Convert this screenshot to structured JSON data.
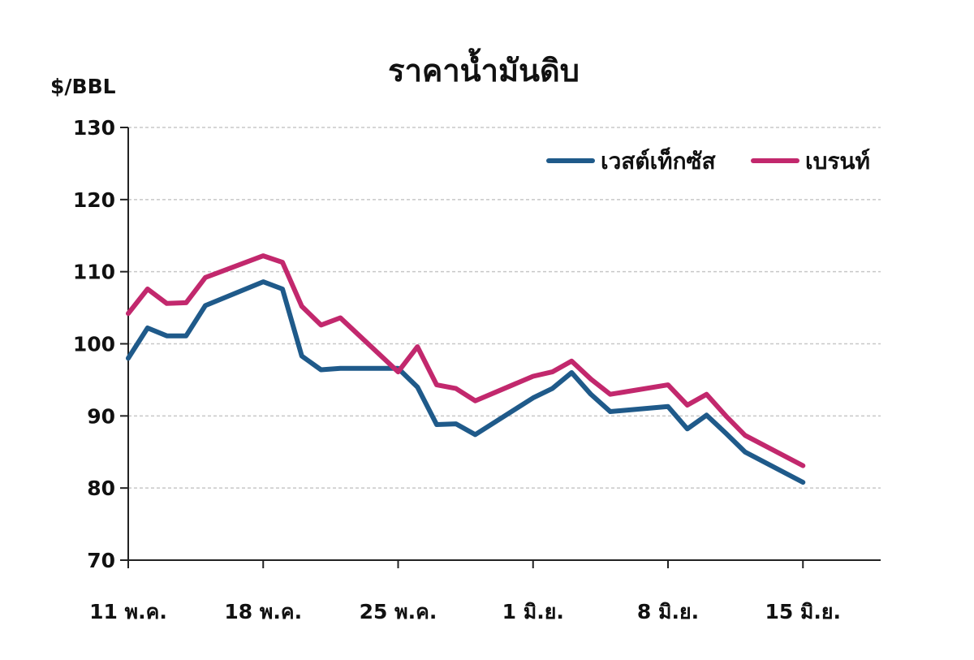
{
  "chart_data": {
    "type": "line",
    "title": "ราคาน้ำมันดิบ",
    "ylabel": "$/BBL",
    "ylim": [
      70,
      130
    ],
    "yticks": [
      70,
      80,
      90,
      100,
      110,
      120,
      130
    ],
    "grid": true,
    "legend_position": "top-right",
    "x_tick_labels": [
      "11 พ.ค.",
      "18 พ.ค.",
      "25 พ.ค.",
      "1 มิ.ย.",
      "8 มิ.ย.",
      "15 มิ.ย."
    ],
    "x_tick_days": [
      0,
      7,
      14,
      21,
      28,
      35
    ],
    "x_range_days": [
      0,
      39
    ],
    "series": [
      {
        "name": "เวสต์เท็กซัส",
        "color": "#1f5a8a",
        "x": [
          0,
          1,
          2,
          3,
          4,
          7,
          8,
          9,
          10,
          11,
          14,
          15,
          16,
          17,
          18,
          21,
          22,
          23,
          24,
          25,
          28,
          29,
          30,
          31,
          32,
          35
        ],
        "values": [
          98.0,
          102.2,
          101.1,
          101.1,
          105.3,
          108.6,
          107.6,
          98.3,
          96.4,
          96.6,
          96.6,
          94.0,
          88.8,
          88.9,
          87.4,
          92.5,
          93.8,
          96.0,
          93.0,
          90.6,
          91.3,
          88.2,
          90.1,
          87.6,
          85.0,
          80.8
        ]
      },
      {
        "name": "เบรนท์",
        "color": "#c2286d",
        "x": [
          0,
          1,
          2,
          3,
          4,
          7,
          8,
          9,
          10,
          11,
          14,
          15,
          16,
          17,
          18,
          21,
          22,
          23,
          24,
          25,
          28,
          29,
          30,
          31,
          32,
          35
        ],
        "values": [
          104.2,
          107.6,
          105.6,
          105.7,
          109.2,
          112.2,
          111.3,
          105.2,
          102.6,
          103.6,
          96.1,
          99.6,
          94.3,
          93.8,
          92.1,
          95.5,
          96.1,
          97.6,
          95.1,
          93.0,
          94.3,
          91.5,
          93.0,
          90.0,
          87.3,
          83.1
        ]
      }
    ]
  }
}
